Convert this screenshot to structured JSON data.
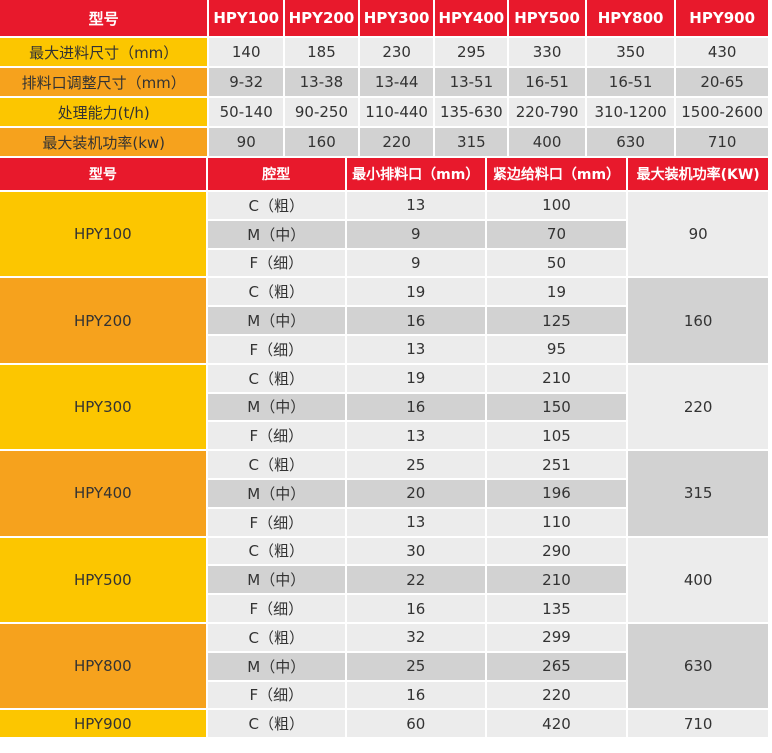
{
  "colors": {
    "header": "#e8192c",
    "yellow": "#fcc600",
    "orange": "#f6a21d",
    "light_gray": "#ececec",
    "dark_gray": "#d2d2d2"
  },
  "spec_table": {
    "header_label": "型号",
    "models": [
      "HPY100",
      "HPY200",
      "HPY300",
      "HPY400",
      "HPY500",
      "HPY800",
      "HPY900"
    ],
    "rows": [
      {
        "label": "最大进料尺寸（mm）",
        "values": [
          "140",
          "185",
          "230",
          "295",
          "330",
          "350",
          "430"
        ]
      },
      {
        "label": "排料口调整尺寸（mm）",
        "values": [
          "9-32",
          "13-38",
          "13-44",
          "13-51",
          "16-51",
          "16-51",
          "20-65"
        ]
      },
      {
        "label": "处理能力(t/h)",
        "values": [
          "50-140",
          "90-250",
          "110-440",
          "135-630",
          "220-790",
          "310-1200",
          "1500-2600"
        ]
      },
      {
        "label": "最大装机功率(kw)",
        "values": [
          "90",
          "160",
          "220",
          "315",
          "400",
          "630",
          "710"
        ]
      }
    ]
  },
  "cavity_table": {
    "headers": [
      "型号",
      "腔型",
      "最小排料口（mm）",
      "紧边给料口（mm）",
      "最大装机功率(KW)"
    ],
    "groups": [
      {
        "model": "HPY100",
        "power": "90",
        "rows": [
          [
            "C（粗）",
            "13",
            "100"
          ],
          [
            "M（中）",
            "9",
            "70"
          ],
          [
            "F（细）",
            "9",
            "50"
          ]
        ]
      },
      {
        "model": "HPY200",
        "power": "160",
        "rows": [
          [
            "C（粗）",
            "19",
            "19"
          ],
          [
            "M（中）",
            "16",
            "125"
          ],
          [
            "F（细）",
            "13",
            "95"
          ]
        ]
      },
      {
        "model": "HPY300",
        "power": "220",
        "rows": [
          [
            "C（粗）",
            "19",
            "210"
          ],
          [
            "M（中）",
            "16",
            "150"
          ],
          [
            "F（细）",
            "13",
            "105"
          ]
        ]
      },
      {
        "model": "HPY400",
        "power": "315",
        "rows": [
          [
            "C（粗）",
            "25",
            "251"
          ],
          [
            "M（中）",
            "20",
            "196"
          ],
          [
            "F（细）",
            "13",
            "110"
          ]
        ]
      },
      {
        "model": "HPY500",
        "power": "400",
        "rows": [
          [
            "C（粗）",
            "30",
            "290"
          ],
          [
            "M（中）",
            "22",
            "210"
          ],
          [
            "F（细）",
            "16",
            "135"
          ]
        ]
      },
      {
        "model": "HPY800",
        "power": "630",
        "rows": [
          [
            "C（粗）",
            "32",
            "299"
          ],
          [
            "M（中）",
            "25",
            "265"
          ],
          [
            "F（细）",
            "16",
            "220"
          ]
        ]
      },
      {
        "model": "HPY900",
        "power": "710",
        "rows": [
          [
            "C（粗）",
            "60",
            "420"
          ]
        ]
      }
    ]
  }
}
